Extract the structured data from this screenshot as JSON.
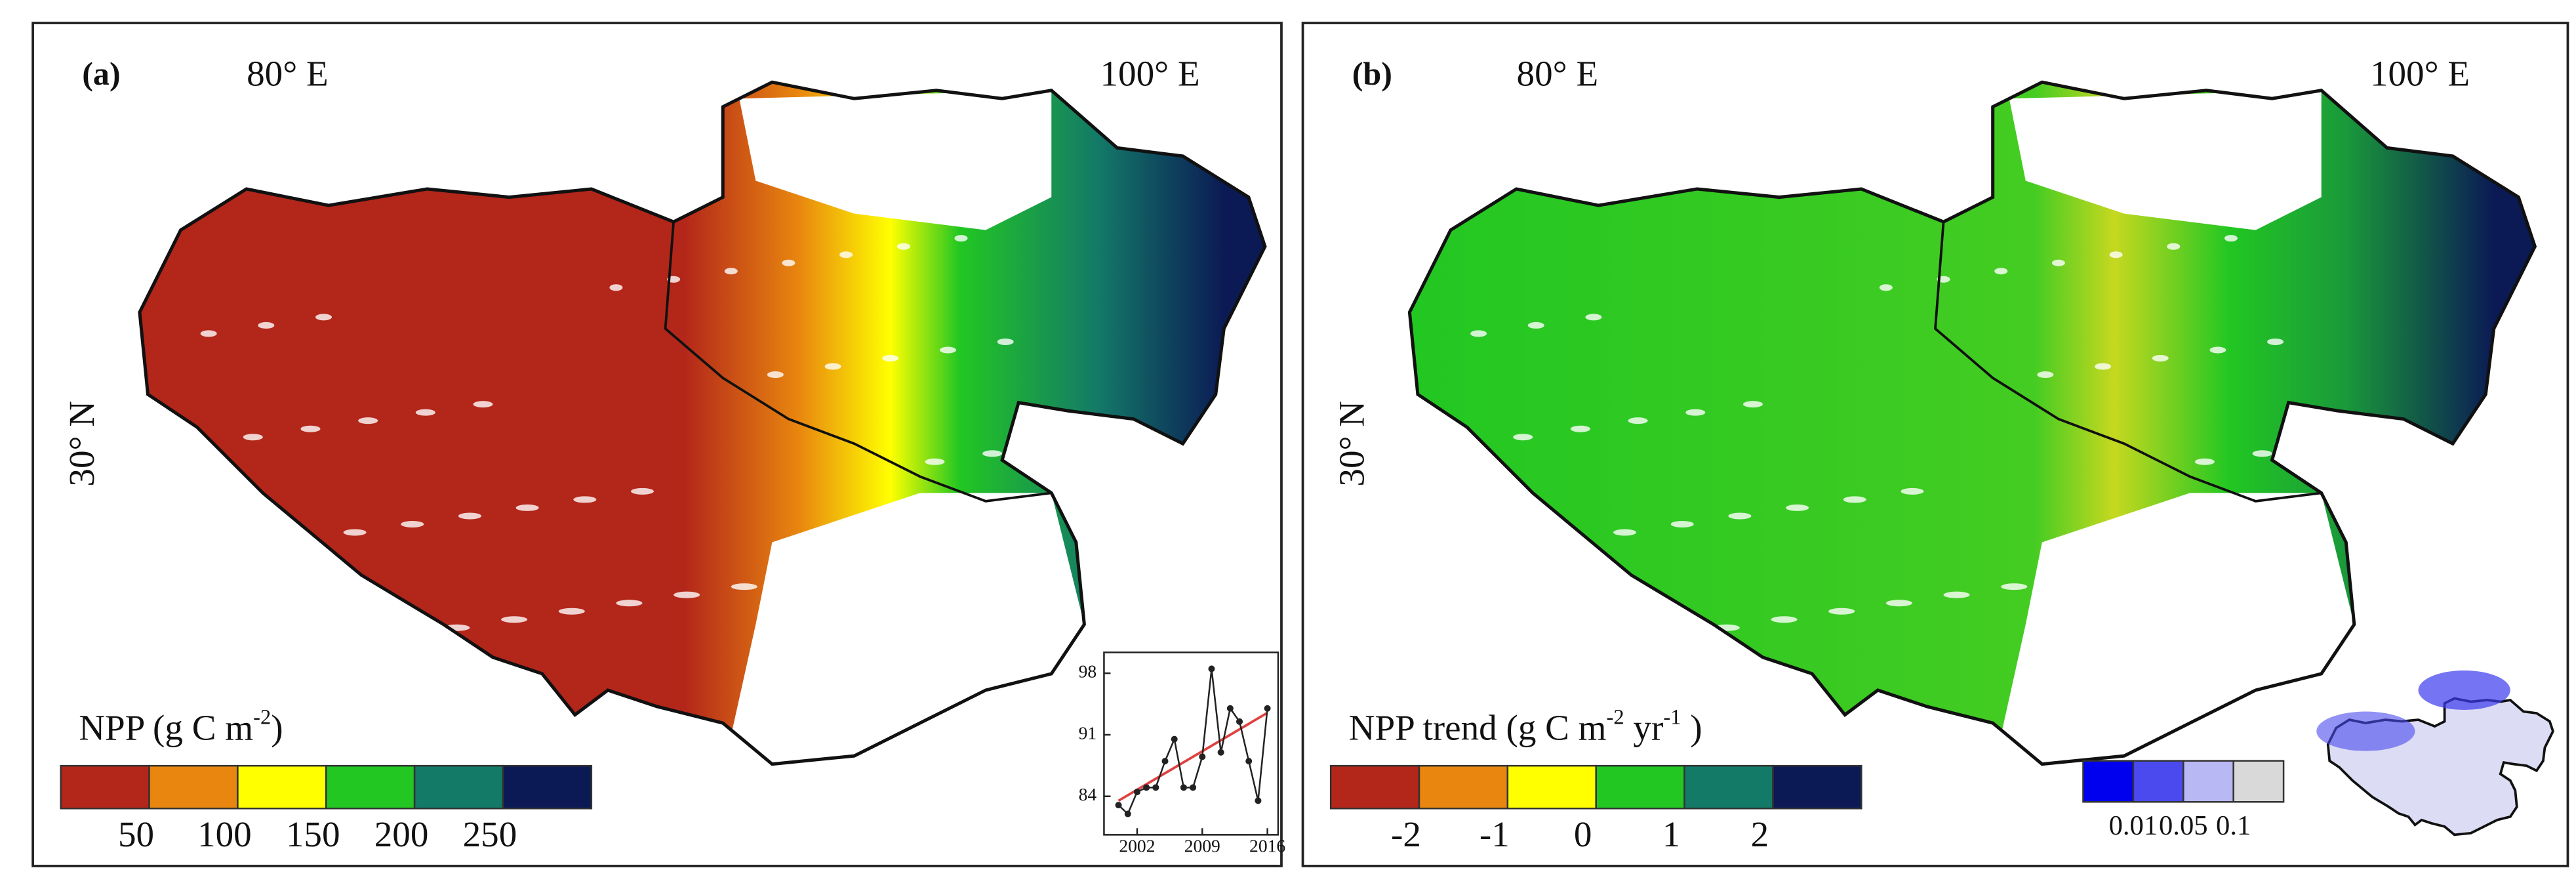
{
  "panels": [
    {
      "label": "(a)",
      "lon_labels": [
        "80° E",
        "100° E"
      ],
      "lat_label": "30° N",
      "legend": {
        "title": [
          {
            "text": "NPP (g C  m"
          },
          {
            "text": "-2",
            "sup": true
          },
          {
            "text": ")"
          }
        ],
        "colors": [
          "#b3261a",
          "#e8860f",
          "#ffff00",
          "#22c722",
          "#137a68",
          "#0b1a55"
        ],
        "ticks": [
          "50",
          "100",
          "150",
          "200",
          "250"
        ]
      },
      "inset": {
        "type": "line",
        "color": "#222222",
        "trend_color": "#e04040",
        "x": [
          2000,
          2001,
          2002,
          2003,
          2004,
          2005,
          2006,
          2007,
          2008,
          2009,
          2010,
          2011,
          2012,
          2013,
          2014,
          2015,
          2016
        ],
        "values": [
          83,
          82,
          84.5,
          85,
          85,
          88,
          90.5,
          85,
          85,
          88.5,
          98.5,
          89,
          94,
          92.5,
          88,
          83.5,
          94
        ],
        "trend_x": [
          2000,
          2016
        ],
        "trend_values": [
          83.5,
          93.5
        ],
        "xlim": [
          1999.5,
          2016.8
        ],
        "ylim": [
          80,
          100
        ],
        "xticks": [
          2002,
          2009,
          2016
        ],
        "yticks": [
          84,
          91,
          98
        ]
      }
    },
    {
      "label": "(b)",
      "lon_labels": [
        "80° E",
        "100° E"
      ],
      "lat_label": "30° N",
      "legend": {
        "title": [
          {
            "text": "NPP trend (g C m"
          },
          {
            "text": "-2",
            "sup": true
          },
          {
            "text": " yr"
          },
          {
            "text": "-1",
            "sup": true
          },
          {
            "text": " )"
          }
        ],
        "colors": [
          "#b3261a",
          "#e8860f",
          "#ffff00",
          "#22c722",
          "#137a68",
          "#0b1a55"
        ],
        "ticks": [
          "-2",
          "-1",
          "0",
          "1",
          "2"
        ]
      },
      "significance": {
        "colors": [
          "#0000ee",
          "#4a4aee",
          "#b8b8f5",
          "#d9d9d9"
        ],
        "ticks": [
          "0.01",
          "0.05",
          "0.1"
        ]
      }
    }
  ]
}
